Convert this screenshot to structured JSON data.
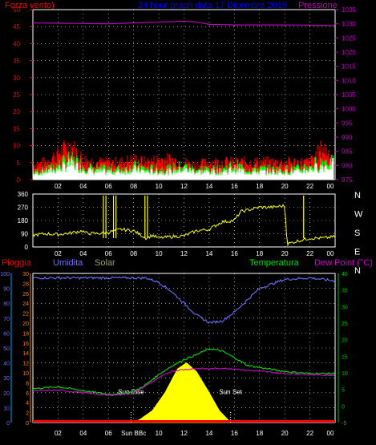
{
  "header": {
    "left_label": "Forza vento)",
    "title": "24 hour graph data  17 Dicembre 2015",
    "right_label": "Pressione"
  },
  "colors": {
    "wind_avg": "#ffffff",
    "wind_gust_green": "#00ff00",
    "wind_gust_red": "#ff0000",
    "pressure": "#c000c0",
    "direction": "#ffff00",
    "humidity": "#6f6fff",
    "temperature": "#00e000",
    "dewpoint": "#d000d0",
    "solar": "#ffff00",
    "rain": "#ff0000",
    "axis_cyan": "#00a0ff",
    "axis_green": "#00c000",
    "axis_orange": "#ff8000",
    "header_blue": "#0000ff"
  },
  "chart_data": [
    {
      "type": "line",
      "name": "wind_pressure",
      "y_left_ticks": [
        "50",
        "45",
        "40",
        "35",
        "30",
        "25",
        "20",
        "15",
        "10",
        "5",
        "0"
      ],
      "y_right_ticks": [
        "1035",
        "1030",
        "1025",
        "1020",
        "1015",
        "1010",
        "1005",
        "1000",
        "995",
        "990",
        "985",
        "980",
        "975"
      ],
      "x_ticks": [
        "02",
        "04",
        "06",
        "08",
        "10",
        "12",
        "14",
        "16",
        "18",
        "20",
        "22",
        "00"
      ],
      "ylim_left": [
        0,
        50
      ],
      "ylim_right": [
        975,
        1035
      ],
      "series": [
        {
          "name": "Pressione",
          "x": [
            0,
            2,
            4,
            6,
            8,
            10,
            12,
            13,
            14,
            16,
            18,
            20,
            22,
            24
          ],
          "values": [
            1030.3,
            1030.2,
            1030.1,
            1030.0,
            1030.3,
            1030.6,
            1030.9,
            1030.6,
            1029.8,
            1029.6,
            1029.6,
            1029.6,
            1029.5,
            1029.4
          ]
        }
      ],
      "wind_avg": {
        "x": [
          0,
          1,
          2,
          3,
          4,
          5,
          6,
          7,
          8,
          9,
          10,
          11,
          12,
          13,
          14,
          15,
          16,
          17,
          18,
          19,
          20,
          21,
          22,
          23,
          24
        ],
        "values": [
          2,
          3,
          4,
          6,
          4,
          3,
          3,
          3,
          4,
          3,
          3,
          3,
          4,
          3,
          3,
          3,
          4,
          3,
          3,
          3,
          3,
          3,
          4,
          5,
          6
        ]
      },
      "wind_gust": {
        "x": [
          0,
          1,
          2,
          3,
          4,
          5,
          6,
          7,
          8,
          9,
          10,
          11,
          12,
          13,
          14,
          15,
          16,
          17,
          18,
          19,
          20,
          21,
          22,
          23,
          24
        ],
        "values": [
          5,
          6,
          9,
          12,
          7,
          6,
          6,
          6,
          7,
          6,
          7,
          7,
          6,
          5,
          6,
          6,
          6,
          6,
          6,
          6,
          6,
          6,
          6,
          11,
          8
        ]
      }
    },
    {
      "type": "line",
      "name": "wind_direction",
      "y_left_ticks": [
        "360",
        "270",
        "180",
        "90",
        "0"
      ],
      "y_right_ticks": [
        "N",
        "W",
        "S",
        "E",
        "N"
      ],
      "ylim": [
        0,
        360
      ],
      "series": [
        {
          "name": "direction",
          "x": [
            0,
            1,
            2,
            3,
            3.9,
            4.2,
            5,
            6,
            7,
            8,
            9,
            9.5,
            10,
            11,
            12,
            13,
            14,
            15,
            16,
            16.5,
            17,
            18,
            19,
            20,
            20.2,
            21,
            22,
            23,
            24
          ],
          "values": [
            80,
            90,
            85,
            95,
            110,
            95,
            90,
            100,
            120,
            110,
            60,
            80,
            60,
            70,
            75,
            110,
            120,
            170,
            180,
            240,
            250,
            270,
            270,
            280,
            20,
            40,
            60,
            60,
            70
          ]
        }
      ]
    },
    {
      "type": "line",
      "name": "humidity_temp_solar",
      "y_left_ticks": [
        "100",
        "90",
        "80",
        "70",
        "60",
        "50",
        "40",
        "30",
        "20",
        "10",
        "0"
      ],
      "y_left2_ticks": [
        "30",
        "28",
        "26",
        "24",
        "22",
        "20",
        "18",
        "16",
        "14",
        "12",
        "10",
        "8",
        "6",
        "4",
        "2",
        "0"
      ],
      "y_right_ticks": [
        "40",
        "35",
        "30",
        "25",
        "20",
        "15",
        "10",
        "5",
        "0",
        "-5"
      ],
      "ylim_humidity": [
        0,
        100
      ],
      "ylim_temp": [
        -5,
        40
      ],
      "series": [
        {
          "name": "Umidita",
          "x": [
            0,
            2,
            4,
            6,
            8,
            9,
            10,
            11,
            12,
            13,
            14,
            15,
            16,
            17,
            18,
            20,
            22,
            24
          ],
          "values": [
            97,
            97,
            97,
            97,
            97,
            97,
            94,
            88,
            80,
            72,
            67,
            68,
            74,
            82,
            90,
            96,
            97,
            95
          ]
        },
        {
          "name": "Temperatura",
          "x": [
            0,
            2,
            4,
            6,
            8,
            9,
            10,
            11,
            12,
            13,
            14,
            15,
            16,
            17,
            18,
            20,
            22,
            24
          ],
          "values": [
            5.2,
            5.8,
            4.6,
            3.5,
            4.2,
            6.5,
            9.5,
            12,
            14,
            15.5,
            17.3,
            16.6,
            14.6,
            12.3,
            11.6,
            10.4,
            9.8,
            9.8
          ]
        },
        {
          "name": "Dew Point (°C)",
          "x": [
            0,
            2,
            4,
            6,
            8,
            9,
            10,
            11,
            12,
            13,
            14,
            15,
            16,
            17,
            18,
            20,
            22,
            24
          ],
          "values": [
            4.5,
            4.8,
            4.0,
            3.2,
            3.8,
            6.2,
            8.5,
            10.5,
            11,
            11.3,
            11.2,
            11.4,
            11.2,
            10.8,
            10.5,
            9.8,
            9.5,
            9.2
          ]
        },
        {
          "name": "Solar",
          "x": [
            7.8,
            8.5,
            9.5,
            10.5,
            11.5,
            12.2,
            13,
            14,
            14.8,
            15.7
          ],
          "values": [
            0,
            2,
            8,
            20,
            36,
            40,
            34,
            20,
            8,
            0
          ]
        }
      ],
      "rain_flat": 0
    }
  ],
  "lower_header": {
    "pioggia": "Pioggia",
    "umidita": "Umidita",
    "solar": "Solar",
    "temperatura": "Temperatura",
    "dewpoint": "Dew Point (°C)"
  },
  "annotations": {
    "sun_rise": "Sun Rise",
    "sun_set": "Sun Set",
    "sun_bbc": "Sun BBc"
  }
}
